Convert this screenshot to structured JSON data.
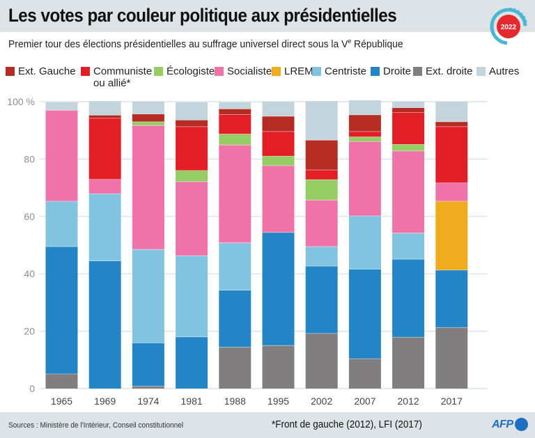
{
  "header": {
    "title": "Les votes par couleur politique aux présidentielles",
    "subtitle_before": "Premier tour des élections présidentielles au suffrage universel direct sous la V",
    "subtitle_sup": "e",
    "subtitle_after": " République",
    "badge_year": "2022"
  },
  "legend": [
    {
      "key": "ext_gauche",
      "label": "Ext. Gauche",
      "color": "#b52c25"
    },
    {
      "key": "communiste",
      "label": "Communiste",
      "label2": "ou allié*",
      "color": "#e21f26"
    },
    {
      "key": "ecologiste",
      "label": "Écologiste",
      "color": "#95cc63"
    },
    {
      "key": "socialiste",
      "label": "Socialiste",
      "color": "#ef72a9"
    },
    {
      "key": "lrem",
      "label": "LREM",
      "color": "#efac1e"
    },
    {
      "key": "centriste",
      "label": "Centriste",
      "color": "#82c3e0"
    },
    {
      "key": "droite",
      "label": "Droite",
      "color": "#2384c6"
    },
    {
      "key": "ext_droite",
      "label": "Ext. droite",
      "color": "#807e7e"
    },
    {
      "key": "autres",
      "label": "Autres",
      "color": "#c3d4dc"
    }
  ],
  "chart_data": {
    "type": "bar",
    "stacked": true,
    "title": "Les votes par couleur politique aux présidentielles",
    "subtitle": "Premier tour des élections présidentielles au suffrage universel direct sous la Ve République",
    "xlabel": "",
    "ylabel": "",
    "ylim": [
      0,
      100
    ],
    "yticks": [
      0,
      20,
      40,
      60,
      80,
      100
    ],
    "ytick_labels": [
      "0",
      "20",
      "40",
      "60",
      "80",
      "100 %"
    ],
    "grid": true,
    "categories": [
      "1965",
      "1969",
      "1974",
      "1981",
      "1988",
      "1995",
      "2002",
      "2007",
      "2012",
      "2017"
    ],
    "series": [
      {
        "name": "Ext. droite",
        "key": "ext_droite",
        "values": [
          5.1,
          0,
          0.8,
          0,
          14.4,
          15.0,
          19.2,
          10.4,
          17.9,
          21.3
        ]
      },
      {
        "name": "Droite",
        "key": "droite",
        "values": [
          44.4,
          44.5,
          15.1,
          18.0,
          19.9,
          39.4,
          23.5,
          31.2,
          27.2,
          20.0
        ]
      },
      {
        "name": "Centriste",
        "key": "centriste",
        "values": [
          15.8,
          23.4,
          32.6,
          28.3,
          16.5,
          0,
          6.8,
          18.6,
          9.1,
          0
        ]
      },
      {
        "name": "LREM",
        "key": "lrem",
        "values": [
          0,
          0,
          0,
          0,
          0,
          0,
          0,
          0,
          0,
          24.0
        ]
      },
      {
        "name": "Socialiste",
        "key": "socialiste",
        "values": [
          31.7,
          5.0,
          43.2,
          25.8,
          34.1,
          23.3,
          16.2,
          25.9,
          28.6,
          6.4
        ]
      },
      {
        "name": "Écologiste",
        "key": "ecologiste",
        "values": [
          0,
          0,
          1.3,
          3.9,
          3.8,
          3.3,
          7.1,
          1.6,
          2.3,
          0
        ]
      },
      {
        "name": "Communiste ou allié*",
        "key": "communiste",
        "values": [
          0,
          21.3,
          0,
          15.3,
          6.8,
          8.6,
          3.4,
          1.9,
          11.1,
          19.6
        ]
      },
      {
        "name": "Ext. Gauche",
        "key": "ext_gauche",
        "values": [
          0,
          1.1,
          2.7,
          2.3,
          2.0,
          5.3,
          10.4,
          5.8,
          1.7,
          1.7
        ]
      },
      {
        "name": "Autres",
        "key": "autres",
        "values": [
          2.9,
          4.9,
          4.4,
          6.3,
          2.4,
          5.1,
          13.6,
          5.1,
          2.2,
          7.0
        ]
      }
    ]
  },
  "footer": {
    "sources": "Sources : Ministère de l'Intérieur, Conseil constitutionnel",
    "note": "*Front de gauche (2012), LFI (2017)",
    "logo": "AFP"
  }
}
